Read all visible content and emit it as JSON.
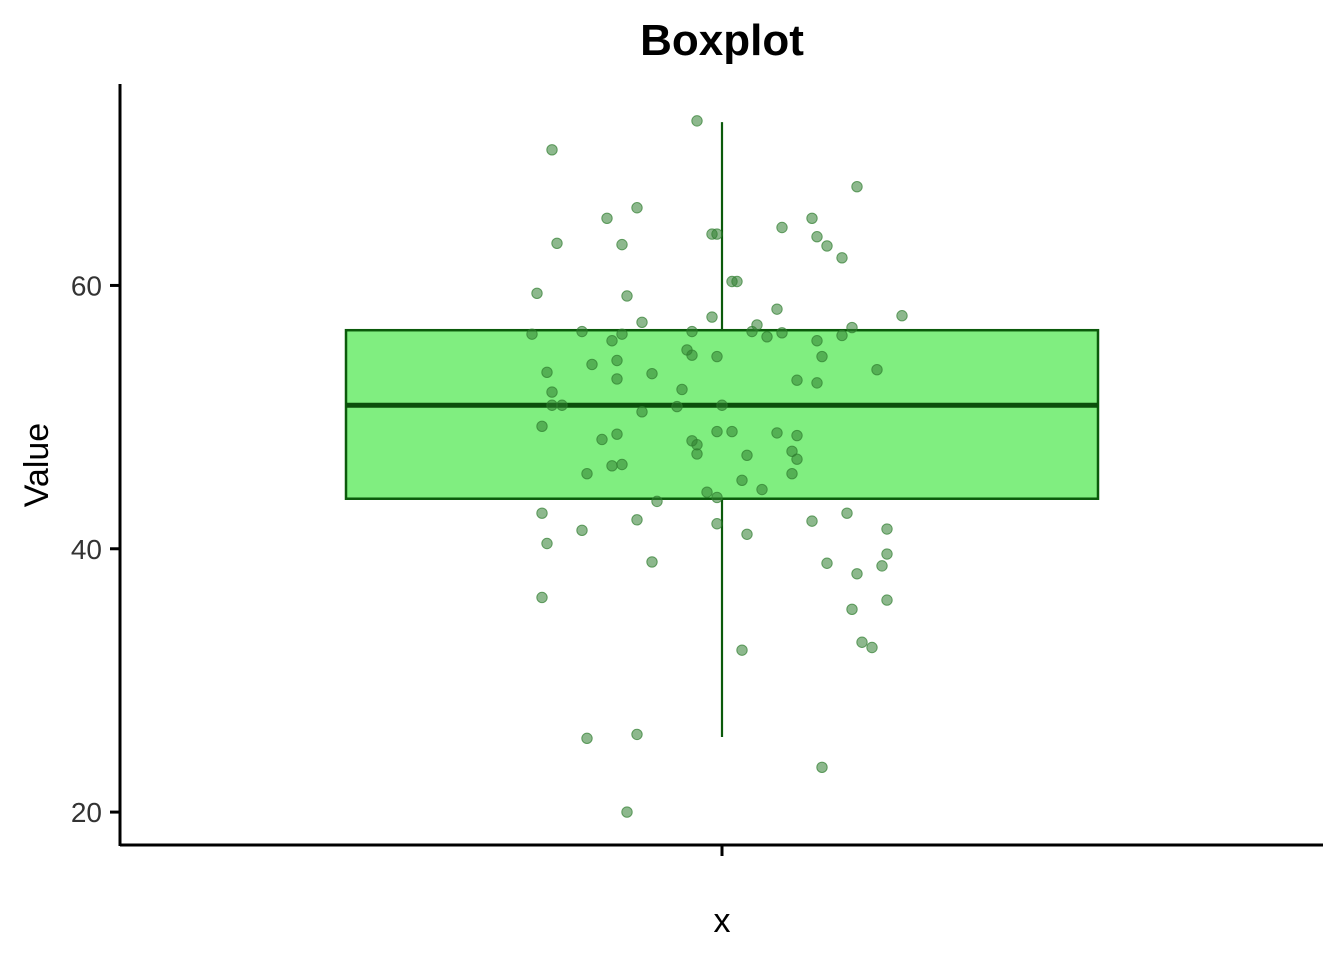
{
  "chart_data": {
    "type": "boxplot",
    "title": "Boxplot",
    "xlabel": "x",
    "ylabel": "Value",
    "categories": [
      ""
    ],
    "ylim": [
      17.5,
      75.3
    ],
    "yticks": [
      20,
      40,
      60
    ],
    "ytick_labels": [
      "20",
      "40",
      "60"
    ],
    "grid": false,
    "legend": "none",
    "box": {
      "whisker_low": 25.7,
      "q1": 43.8,
      "median": 50.9,
      "q3": 56.6,
      "whisker_high": 72.4
    },
    "points": [
      {
        "x": -0.34,
        "y": 70.3
      },
      {
        "x": -0.05,
        "y": 72.5
      },
      {
        "x": 0.27,
        "y": 67.5
      },
      {
        "x": -0.17,
        "y": 65.9
      },
      {
        "x": -0.23,
        "y": 65.1
      },
      {
        "x": 0.18,
        "y": 65.1
      },
      {
        "x": 0.12,
        "y": 64.4
      },
      {
        "x": -0.02,
        "y": 63.9
      },
      {
        "x": -0.01,
        "y": 63.9
      },
      {
        "x": 0.19,
        "y": 63.7
      },
      {
        "x": -0.33,
        "y": 63.2
      },
      {
        "x": -0.2,
        "y": 63.1
      },
      {
        "x": 0.21,
        "y": 63.0
      },
      {
        "x": 0.24,
        "y": 62.1
      },
      {
        "x": 0.02,
        "y": 60.3
      },
      {
        "x": 0.03,
        "y": 60.3
      },
      {
        "x": -0.37,
        "y": 59.4
      },
      {
        "x": -0.19,
        "y": 59.2
      },
      {
        "x": 0.11,
        "y": 58.2
      },
      {
        "x": 0.36,
        "y": 57.7
      },
      {
        "x": -0.02,
        "y": 57.6
      },
      {
        "x": -0.16,
        "y": 57.2
      },
      {
        "x": 0.07,
        "y": 57.0
      },
      {
        "x": 0.26,
        "y": 56.8
      },
      {
        "x": -0.28,
        "y": 56.5
      },
      {
        "x": -0.06,
        "y": 56.5
      },
      {
        "x": 0.06,
        "y": 56.5
      },
      {
        "x": 0.12,
        "y": 56.4
      },
      {
        "x": -0.38,
        "y": 56.3
      },
      {
        "x": -0.2,
        "y": 56.3
      },
      {
        "x": 0.24,
        "y": 56.2
      },
      {
        "x": 0.09,
        "y": 56.1
      },
      {
        "x": 0.19,
        "y": 55.8
      },
      {
        "x": -0.22,
        "y": 55.8
      },
      {
        "x": -0.07,
        "y": 55.1
      },
      {
        "x": -0.06,
        "y": 54.7
      },
      {
        "x": -0.01,
        "y": 54.6
      },
      {
        "x": 0.2,
        "y": 54.6
      },
      {
        "x": -0.21,
        "y": 54.3
      },
      {
        "x": -0.26,
        "y": 54.0
      },
      {
        "x": 0.31,
        "y": 53.6
      },
      {
        "x": -0.35,
        "y": 53.4
      },
      {
        "x": -0.14,
        "y": 53.3
      },
      {
        "x": -0.21,
        "y": 52.9
      },
      {
        "x": 0.15,
        "y": 52.8
      },
      {
        "x": 0.19,
        "y": 52.6
      },
      {
        "x": -0.08,
        "y": 52.1
      },
      {
        "x": -0.34,
        "y": 51.9
      },
      {
        "x": -0.34,
        "y": 50.9
      },
      {
        "x": -0.32,
        "y": 50.9
      },
      {
        "x": -0.09,
        "y": 50.8
      },
      {
        "x": 0.0,
        "y": 50.9
      },
      {
        "x": -0.16,
        "y": 50.4
      },
      {
        "x": -0.36,
        "y": 49.3
      },
      {
        "x": -0.01,
        "y": 48.9
      },
      {
        "x": 0.02,
        "y": 48.9
      },
      {
        "x": 0.11,
        "y": 48.8
      },
      {
        "x": 0.15,
        "y": 48.6
      },
      {
        "x": -0.21,
        "y": 48.7
      },
      {
        "x": -0.24,
        "y": 48.3
      },
      {
        "x": -0.06,
        "y": 48.2
      },
      {
        "x": -0.05,
        "y": 47.9
      },
      {
        "x": 0.14,
        "y": 47.4
      },
      {
        "x": -0.05,
        "y": 47.2
      },
      {
        "x": 0.05,
        "y": 47.1
      },
      {
        "x": 0.15,
        "y": 46.8
      },
      {
        "x": -0.2,
        "y": 46.4
      },
      {
        "x": -0.22,
        "y": 46.3
      },
      {
        "x": -0.27,
        "y": 45.7
      },
      {
        "x": 0.14,
        "y": 45.7
      },
      {
        "x": 0.04,
        "y": 45.2
      },
      {
        "x": 0.08,
        "y": 44.5
      },
      {
        "x": -0.03,
        "y": 44.3
      },
      {
        "x": -0.01,
        "y": 43.9
      },
      {
        "x": -0.13,
        "y": 43.6
      },
      {
        "x": 0.25,
        "y": 42.7
      },
      {
        "x": -0.36,
        "y": 42.7
      },
      {
        "x": -0.17,
        "y": 42.2
      },
      {
        "x": 0.18,
        "y": 42.1
      },
      {
        "x": -0.01,
        "y": 41.9
      },
      {
        "x": 0.33,
        "y": 41.5
      },
      {
        "x": -0.28,
        "y": 41.4
      },
      {
        "x": 0.05,
        "y": 41.1
      },
      {
        "x": -0.35,
        "y": 40.4
      },
      {
        "x": 0.33,
        "y": 39.6
      },
      {
        "x": -0.14,
        "y": 39.0
      },
      {
        "x": 0.21,
        "y": 38.9
      },
      {
        "x": 0.32,
        "y": 38.7
      },
      {
        "x": 0.27,
        "y": 38.1
      },
      {
        "x": -0.36,
        "y": 36.3
      },
      {
        "x": 0.33,
        "y": 36.1
      },
      {
        "x": 0.26,
        "y": 35.4
      },
      {
        "x": 0.28,
        "y": 32.9
      },
      {
        "x": 0.3,
        "y": 32.5
      },
      {
        "x": 0.04,
        "y": 32.3
      },
      {
        "x": -0.17,
        "y": 25.9
      },
      {
        "x": -0.27,
        "y": 25.6
      },
      {
        "x": 0.2,
        "y": 23.4
      },
      {
        "x": -0.19,
        "y": 20.0
      }
    ],
    "colors": {
      "box_fill": "#80ee80",
      "box_stroke": "#0b5a0b",
      "median": "#0b4f0b",
      "point": "#2f7d2f",
      "axis": "#000000",
      "tick_label": "#333333"
    }
  }
}
